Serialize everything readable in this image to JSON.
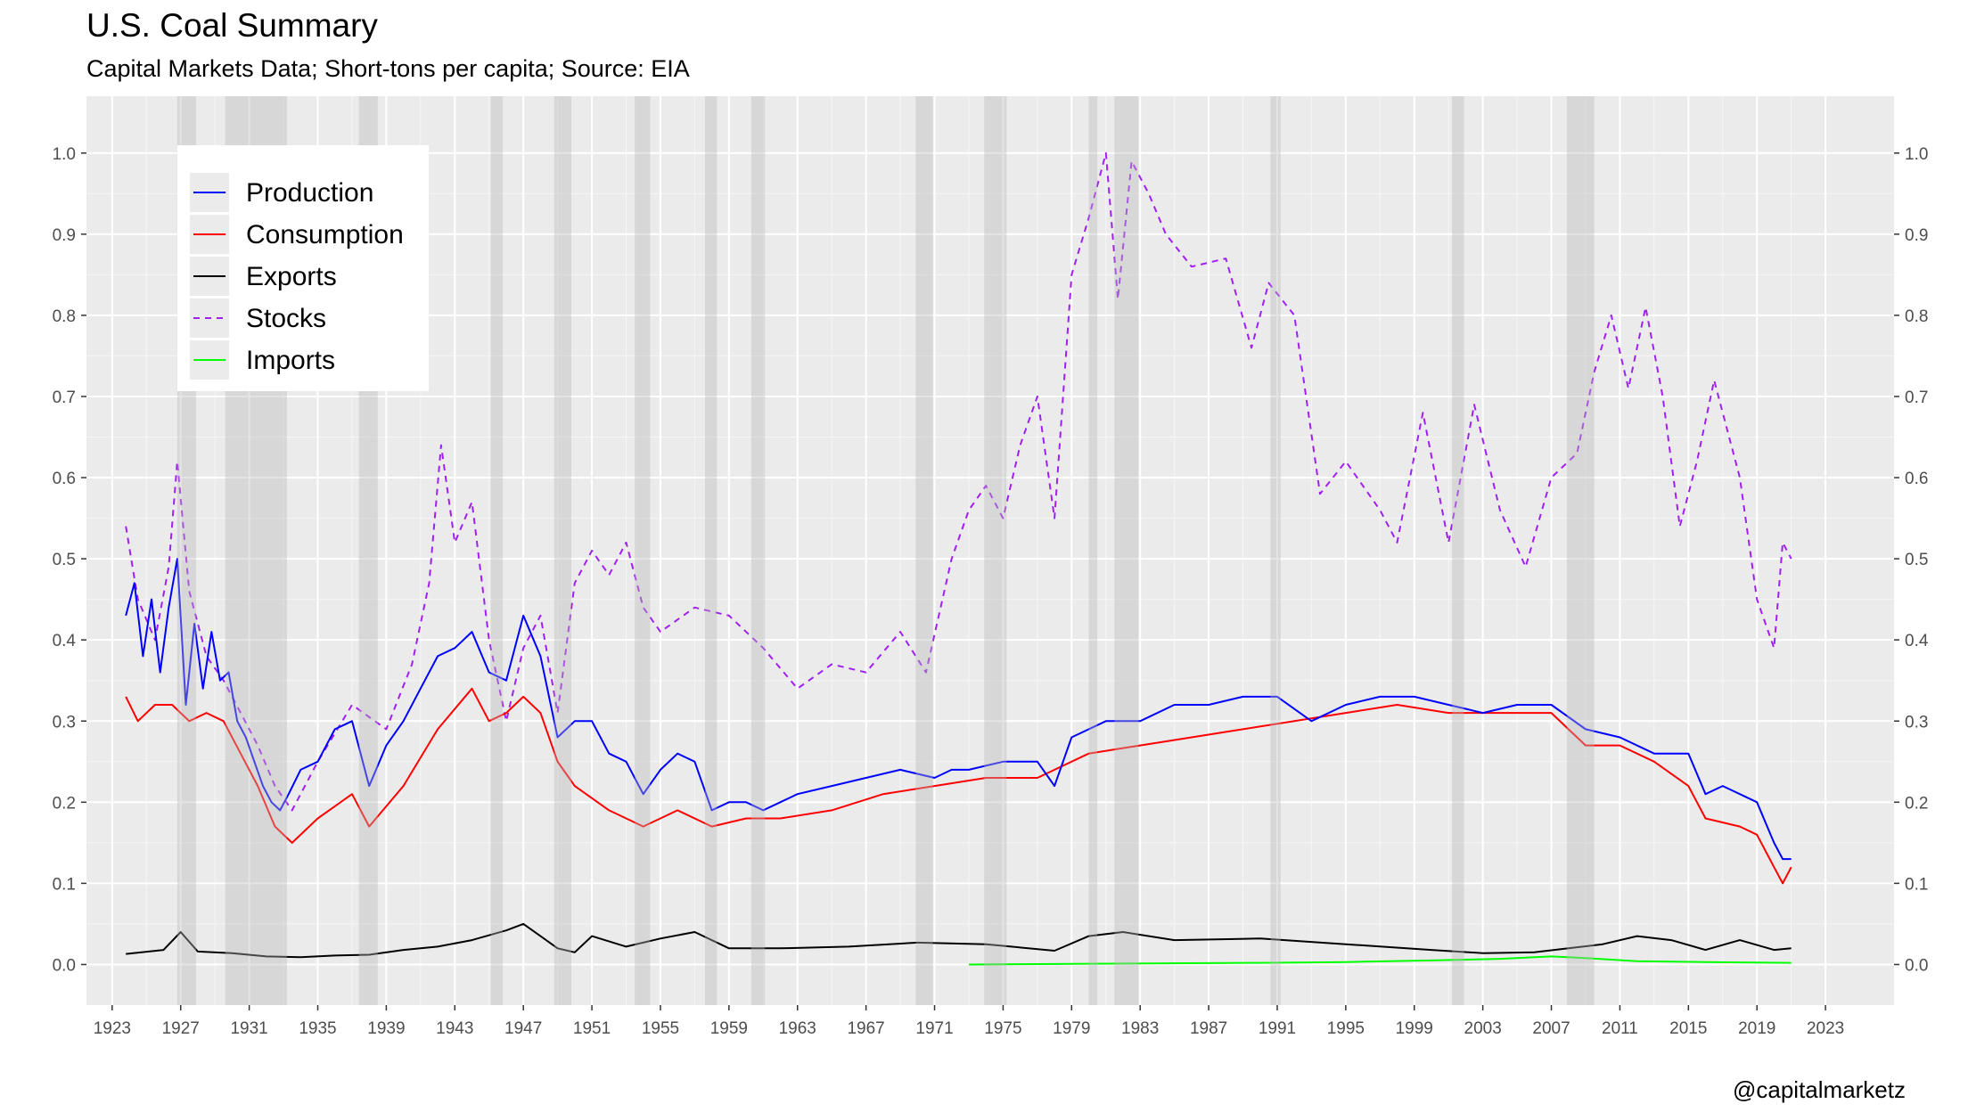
{
  "title": "U.S. Coal Summary",
  "subtitle": "Capital Markets Data; Short-tons per capita; Source: EIA",
  "credit": "@capitalmarketz",
  "chart_data": {
    "type": "line",
    "xlim": [
      1921.5,
      2027.0
    ],
    "ylim": [
      -0.05,
      1.07
    ],
    "grid": true,
    "legend_position": "top-left",
    "x_ticks": [
      1923,
      1927,
      1931,
      1935,
      1939,
      1943,
      1947,
      1951,
      1955,
      1959,
      1963,
      1967,
      1971,
      1975,
      1979,
      1983,
      1987,
      1991,
      1995,
      1999,
      2003,
      2007,
      2011,
      2015,
      2019,
      2023
    ],
    "y_ticks": [
      0.0,
      0.1,
      0.2,
      0.3,
      0.4,
      0.5,
      0.6,
      0.7,
      0.8,
      0.9,
      1.0
    ],
    "x_tick_labels": [
      "1923",
      "1927",
      "1931",
      "1935",
      "1939",
      "1943",
      "1947",
      "1951",
      "1955",
      "1959",
      "1963",
      "1967",
      "1971",
      "1975",
      "1979",
      "1983",
      "1987",
      "1991",
      "1995",
      "1999",
      "2003",
      "2007",
      "2011",
      "2015",
      "2019",
      "2023"
    ],
    "y_tick_labels": [
      "0.0",
      "0.1",
      "0.2",
      "0.3",
      "0.4",
      "0.5",
      "0.6",
      "0.7",
      "0.8",
      "0.9",
      "1.0"
    ],
    "recessions": [
      [
        1926.8,
        1927.9
      ],
      [
        1929.6,
        1933.2
      ],
      [
        1937.4,
        1938.5
      ],
      [
        1945.1,
        1945.8
      ],
      [
        1948.8,
        1949.8
      ],
      [
        1953.5,
        1954.4
      ],
      [
        1957.6,
        1958.3
      ],
      [
        1960.3,
        1961.1
      ],
      [
        1969.9,
        1970.9
      ],
      [
        1973.9,
        1975.2
      ],
      [
        1980.0,
        1980.5
      ],
      [
        1981.5,
        1982.9
      ],
      [
        1990.6,
        1991.2
      ],
      [
        2001.2,
        2001.9
      ],
      [
        2007.9,
        2009.5
      ]
    ],
    "series": [
      {
        "name": "Production",
        "color": "#0000ff",
        "dash": "none",
        "x": [
          1923.8,
          1924.3,
          1924.8,
          1925.3,
          1925.8,
          1926.3,
          1926.8,
          1927.3,
          1927.8,
          1928.3,
          1928.8,
          1929.3,
          1929.8,
          1930.3,
          1930.8,
          1931.3,
          1931.8,
          1932.3,
          1932.8,
          1933.3,
          1934,
          1935,
          1936,
          1937,
          1938,
          1939,
          1940,
          1941,
          1942,
          1943,
          1944,
          1945,
          1946,
          1947,
          1947.6,
          1948,
          1949,
          1950,
          1951,
          1952,
          1953,
          1954,
          1955,
          1956,
          1957,
          1958,
          1959,
          1960,
          1961,
          1962,
          1963,
          1965,
          1967,
          1969,
          1971,
          1972,
          1973,
          1975,
          1977,
          1978,
          1979,
          1981,
          1983,
          1985,
          1987,
          1989,
          1991,
          1993,
          1995,
          1997,
          1999,
          2001,
          2003,
          2005,
          2007,
          2009,
          2011,
          2013,
          2015,
          2016,
          2017,
          2018,
          2019,
          2020,
          2020.5,
          2021
        ],
        "y": [
          0.43,
          0.47,
          0.38,
          0.45,
          0.36,
          0.44,
          0.5,
          0.32,
          0.42,
          0.34,
          0.41,
          0.35,
          0.36,
          0.3,
          0.28,
          0.25,
          0.22,
          0.2,
          0.19,
          0.21,
          0.24,
          0.25,
          0.29,
          0.3,
          0.22,
          0.27,
          0.3,
          0.34,
          0.38,
          0.39,
          0.41,
          0.36,
          0.35,
          0.43,
          0.4,
          0.38,
          0.28,
          0.3,
          0.3,
          0.26,
          0.25,
          0.21,
          0.24,
          0.26,
          0.25,
          0.19,
          0.2,
          0.2,
          0.19,
          0.2,
          0.21,
          0.22,
          0.23,
          0.24,
          0.23,
          0.24,
          0.24,
          0.25,
          0.25,
          0.22,
          0.28,
          0.3,
          0.3,
          0.32,
          0.32,
          0.33,
          0.33,
          0.3,
          0.32,
          0.33,
          0.33,
          0.32,
          0.31,
          0.32,
          0.32,
          0.29,
          0.28,
          0.26,
          0.26,
          0.21,
          0.22,
          0.21,
          0.2,
          0.15,
          0.13,
          0.13
        ]
      },
      {
        "name": "Consumption",
        "color": "#ff0000",
        "dash": "none",
        "x": [
          1923.8,
          1924.5,
          1925.5,
          1926.5,
          1927.5,
          1928.5,
          1929.5,
          1930.5,
          1931.5,
          1932.5,
          1933.5,
          1935,
          1937,
          1938,
          1940,
          1942,
          1944,
          1945,
          1946,
          1947,
          1948,
          1949,
          1950,
          1952,
          1954,
          1956,
          1958,
          1960,
          1962,
          1965,
          1968,
          1971,
          1974,
          1977,
          1980,
          1983,
          1986,
          1989,
          1992,
          1995,
          1998,
          2001,
          2004,
          2007,
          2009,
          2011,
          2013,
          2015,
          2016,
          2018,
          2019,
          2020,
          2020.5,
          2021
        ],
        "y": [
          0.33,
          0.3,
          0.32,
          0.32,
          0.3,
          0.31,
          0.3,
          0.26,
          0.22,
          0.17,
          0.15,
          0.18,
          0.21,
          0.17,
          0.22,
          0.29,
          0.34,
          0.3,
          0.31,
          0.33,
          0.31,
          0.25,
          0.22,
          0.19,
          0.17,
          0.19,
          0.17,
          0.18,
          0.18,
          0.19,
          0.21,
          0.22,
          0.23,
          0.23,
          0.26,
          0.27,
          0.28,
          0.29,
          0.3,
          0.31,
          0.32,
          0.31,
          0.31,
          0.31,
          0.27,
          0.27,
          0.25,
          0.22,
          0.18,
          0.17,
          0.16,
          0.12,
          0.1,
          0.12
        ]
      },
      {
        "name": "Exports",
        "color": "#000000",
        "dash": "none",
        "x": [
          1923.8,
          1926,
          1927,
          1928,
          1930,
          1932,
          1934,
          1936,
          1938,
          1940,
          1942,
          1944,
          1946,
          1947,
          1948,
          1949,
          1950,
          1951,
          1953,
          1955,
          1957,
          1959,
          1962,
          1966,
          1970,
          1974,
          1978,
          1980,
          1982,
          1985,
          1990,
          1995,
          2000,
          2003,
          2006,
          2008,
          2010,
          2012,
          2014,
          2016,
          2018,
          2020,
          2021
        ],
        "y": [
          0.013,
          0.018,
          0.04,
          0.016,
          0.014,
          0.01,
          0.009,
          0.011,
          0.012,
          0.018,
          0.022,
          0.03,
          0.042,
          0.05,
          0.035,
          0.02,
          0.015,
          0.035,
          0.022,
          0.032,
          0.04,
          0.02,
          0.02,
          0.022,
          0.027,
          0.025,
          0.017,
          0.035,
          0.04,
          0.03,
          0.032,
          0.025,
          0.018,
          0.014,
          0.015,
          0.02,
          0.025,
          0.035,
          0.03,
          0.018,
          0.03,
          0.018,
          0.02
        ]
      },
      {
        "name": "Stocks",
        "color": "#a020f0",
        "dash": "7,6",
        "x": [
          1923.8,
          1924.5,
          1925.5,
          1926.3,
          1926.8,
          1927.5,
          1928.5,
          1929.5,
          1930.5,
          1931.5,
          1932.5,
          1933.5,
          1935,
          1937,
          1939,
          1940.5,
          1941.5,
          1942.2,
          1943,
          1944,
          1945,
          1946,
          1947,
          1948,
          1949,
          1950,
          1951,
          1952,
          1953,
          1954,
          1955,
          1957,
          1959,
          1961,
          1963,
          1965,
          1967,
          1969,
          1970.5,
          1972,
          1973,
          1974,
          1975,
          1976,
          1977,
          1978,
          1979,
          1980,
          1981,
          1981.7,
          1982.5,
          1983.5,
          1984.5,
          1986,
          1988,
          1989.5,
          1990.5,
          1992,
          1993.5,
          1995,
          1997,
          1998,
          1999.5,
          2001,
          2002.5,
          2004,
          2005.5,
          2007,
          2008.5,
          2009.5,
          2010.5,
          2011.5,
          2012.5,
          2013.5,
          2014.5,
          2015.5,
          2016.5,
          2018,
          2019,
          2020,
          2020.5,
          2021
        ],
        "y": [
          0.54,
          0.45,
          0.4,
          0.49,
          0.62,
          0.46,
          0.38,
          0.35,
          0.31,
          0.27,
          0.22,
          0.19,
          0.25,
          0.32,
          0.29,
          0.37,
          0.47,
          0.64,
          0.52,
          0.57,
          0.4,
          0.3,
          0.39,
          0.43,
          0.31,
          0.47,
          0.51,
          0.48,
          0.52,
          0.44,
          0.41,
          0.44,
          0.43,
          0.39,
          0.34,
          0.37,
          0.36,
          0.41,
          0.36,
          0.5,
          0.56,
          0.59,
          0.55,
          0.64,
          0.7,
          0.55,
          0.85,
          0.92,
          1.0,
          0.82,
          0.99,
          0.95,
          0.9,
          0.86,
          0.87,
          0.76,
          0.84,
          0.8,
          0.58,
          0.62,
          0.56,
          0.52,
          0.68,
          0.52,
          0.69,
          0.56,
          0.49,
          0.6,
          0.63,
          0.73,
          0.8,
          0.71,
          0.81,
          0.7,
          0.54,
          0.62,
          0.72,
          0.6,
          0.45,
          0.39,
          0.52,
          0.5
        ]
      },
      {
        "name": "Imports",
        "color": "#00ff00",
        "dash": "none",
        "x": [
          1973,
          1980,
          1990,
          1995,
          2000,
          2004,
          2007,
          2009,
          2012,
          2016,
          2021
        ],
        "y": [
          0.0,
          0.001,
          0.002,
          0.003,
          0.005,
          0.007,
          0.01,
          0.008,
          0.004,
          0.003,
          0.002
        ]
      }
    ]
  }
}
